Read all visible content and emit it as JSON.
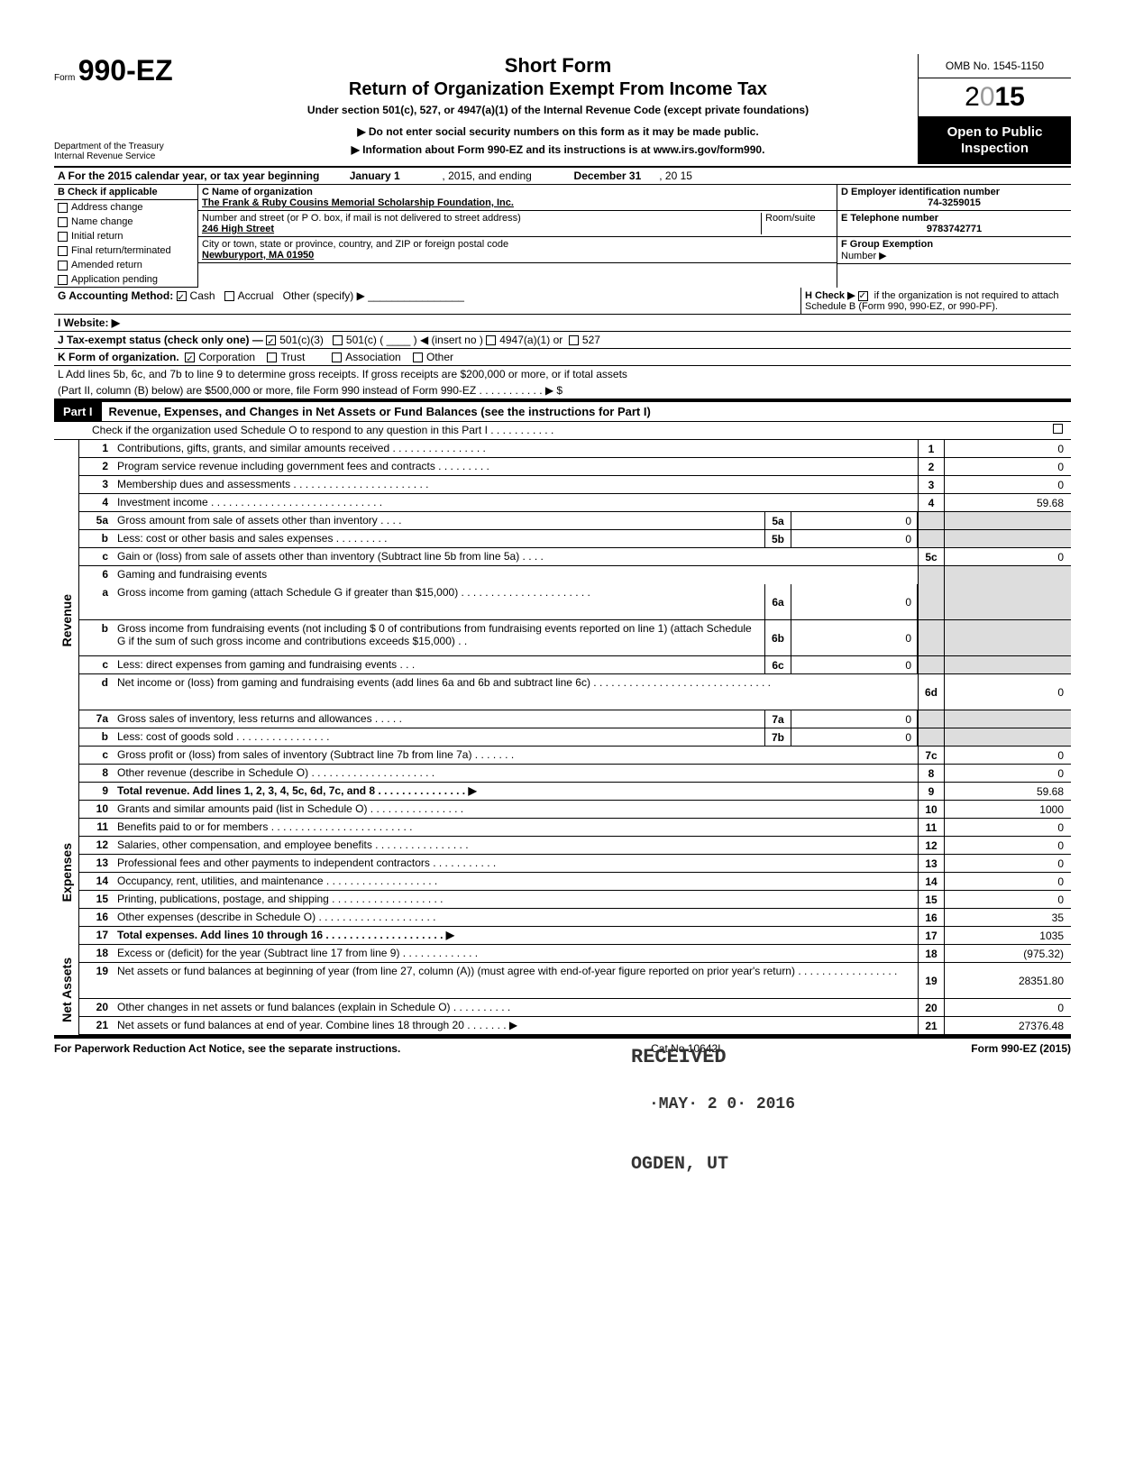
{
  "header": {
    "form_prefix": "Form",
    "form_number": "990-EZ",
    "title_line1": "Short Form",
    "title_line2": "Return of Organization Exempt From Income Tax",
    "subtitle": "Under section 501(c), 527, or 4947(a)(1) of the Internal Revenue Code (except private foundations)",
    "notice1": "▶ Do not enter social security numbers on this form as it may be made public.",
    "notice2": "▶ Information about Form 990-EZ and its instructions is at www.irs.gov/form990.",
    "omb": "OMB No. 1545-1150",
    "year_prefix": "2",
    "year_zero": "0",
    "year_suffix": "15",
    "open_public": "Open to Public Inspection",
    "dept1": "Department of the Treasury",
    "dept2": "Internal Revenue Service"
  },
  "section_a": {
    "label": "A For the 2015 calendar year, or tax year beginning",
    "begin": "January 1",
    "mid": ", 2015, and ending",
    "end": "December 31",
    "end_year": ", 20 15"
  },
  "section_b": {
    "label": "B Check if applicable",
    "items": [
      "Address change",
      "Name change",
      "Initial return",
      "Final return/terminated",
      "Amended return",
      "Application pending"
    ]
  },
  "section_c": {
    "label": "C Name of organization",
    "org_name": "The Frank & Ruby Cousins Memorial Scholarship Foundation, Inc.",
    "addr_label": "Number and street (or P O. box, if mail is not delivered to street address)",
    "room_label": "Room/suite",
    "street": "246 High Street",
    "city_label": "City or town, state or province, country, and ZIP or foreign postal code",
    "city": "Newburyport, MA  01950"
  },
  "section_d": {
    "label": "D Employer identification number",
    "value": "74-3259015"
  },
  "section_e": {
    "label": "E Telephone number",
    "value": "9783742771"
  },
  "section_f": {
    "label": "F Group Exemption",
    "label2": "Number ▶"
  },
  "section_g": {
    "label": "G Accounting Method:",
    "cash": "Cash",
    "accrual": "Accrual",
    "other": "Other (specify) ▶"
  },
  "section_h": {
    "label": "H Check ▶",
    "text": "if the organization is not required to attach Schedule B (Form 990, 990-EZ, or 990-PF)."
  },
  "section_i": {
    "label": "I  Website: ▶"
  },
  "section_j": {
    "label": "J Tax-exempt status (check only one) —",
    "o1": "501(c)(3)",
    "o2": "501(c) (",
    "o3": ") ◀ (insert no )",
    "o4": "4947(a)(1) or",
    "o5": "527"
  },
  "section_k": {
    "label": "K Form of organization.",
    "o1": "Corporation",
    "o2": "Trust",
    "o3": "Association",
    "o4": "Other"
  },
  "section_l": {
    "line1": "L Add lines 5b, 6c, and 7b to line 9 to determine gross receipts. If gross receipts are $200,000 or more, or if total assets",
    "line2": "(Part II, column (B) below) are $500,000 or more, file Form 990 instead of Form 990-EZ .  .  .  .  .  .  .  .  .  .  .  ▶  $"
  },
  "part1": {
    "label": "Part I",
    "title": "Revenue, Expenses, and Changes in Net Assets or Fund Balances (see the instructions for Part I)",
    "check_line": "Check if the organization used Schedule O to respond to any question in this Part I  .  .  .  .  .  .  .  .  .  .  ."
  },
  "sides": {
    "revenue": "Revenue",
    "expenses": "Expenses",
    "net": "Net Assets"
  },
  "lines": [
    {
      "n": "1",
      "d": "Contributions, gifts, grants, and similar amounts received .  .  .  .  .  .  .  .  .  .  .  .  .  .  .  .",
      "b": "1",
      "v": "0"
    },
    {
      "n": "2",
      "d": "Program service revenue including government fees and contracts  .  .  .  .  .  .  .  .  .",
      "b": "2",
      "v": "0"
    },
    {
      "n": "3",
      "d": "Membership dues and assessments .  .  .  .  .  .  .  .  .  .  .  .  .  .  .  .  .  .  .  .  .  .  .",
      "b": "3",
      "v": "0"
    },
    {
      "n": "4",
      "d": "Investment income  .  .  .  .  .  .  .  .  .  .  .  .  .  .  .  .  .  .  .  .  .  .  .  .  .  .  .  .  .",
      "b": "4",
      "v": "59.68"
    },
    {
      "n": "5a",
      "d": "Gross amount from sale of assets other than inventory  .  .  .  .",
      "mn": "5a",
      "mv": "0",
      "gray": true
    },
    {
      "n": "b",
      "d": "Less: cost or other basis and sales expenses .  .  .  .  .  .  .  .  .",
      "mn": "5b",
      "mv": "0",
      "gray": true
    },
    {
      "n": "c",
      "d": "Gain or (loss) from sale of assets other than inventory (Subtract line 5b from line 5a) .  .  .  .",
      "b": "5c",
      "v": "0"
    },
    {
      "n": "6",
      "d": "Gaming and fundraising events",
      "gray": true,
      "noborder": true
    },
    {
      "n": "a",
      "d": "Gross income from gaming (attach Schedule G if greater than $15,000) .  .  .  .  .  .  .  .  .  .  .  .  .  .  .  .  .  .  .  .  .  .",
      "mn": "6a",
      "mv": "0",
      "gray": true,
      "tall": true
    },
    {
      "n": "b",
      "d": "Gross income from fundraising events (not including  $                    0 of contributions from fundraising events reported on line 1) (attach Schedule G if the sum of such gross income and contributions exceeds $15,000) .  .",
      "mn": "6b",
      "mv": "0",
      "gray": true,
      "tall": true
    },
    {
      "n": "c",
      "d": "Less: direct expenses from gaming and fundraising events  .  .  .",
      "mn": "6c",
      "mv": "0",
      "gray": true
    },
    {
      "n": "d",
      "d": "Net income or (loss) from gaming and fundraising events (add lines 6a and 6b and subtract line 6c)  .  .  .  .  .  .  .  .  .  .  .  .  .  .  .  .  .  .  .  .  .  .  .  .  .  .  .  .  .  .",
      "b": "6d",
      "v": "0",
      "tall": true
    },
    {
      "n": "7a",
      "d": "Gross sales of inventory, less returns and allowances  .  .  .  .  .",
      "mn": "7a",
      "mv": "0",
      "gray": true
    },
    {
      "n": "b",
      "d": "Less: cost of goods sold  .  .  .  .  .  .  .  .  .  .  .  .  .  .  .  .",
      "mn": "7b",
      "mv": "0",
      "gray": true
    },
    {
      "n": "c",
      "d": "Gross profit or (loss) from sales of inventory (Subtract line 7b from line 7a)  .  .  .  .  .  .  .",
      "b": "7c",
      "v": "0"
    },
    {
      "n": "8",
      "d": "Other revenue (describe in Schedule O) .  .  .  .  .  .  .  .  .  .  .  .  .  .  .  .  .  .  .  .  .",
      "b": "8",
      "v": "0"
    },
    {
      "n": "9",
      "d": "Total revenue. Add lines 1, 2, 3, 4, 5c, 6d, 7c, and 8  .  .  .  .  .  .  .  .  .  .  .  .  .  .  .  ▶",
      "b": "9",
      "v": "59.68",
      "bold": true
    }
  ],
  "exp_lines": [
    {
      "n": "10",
      "d": "Grants and similar amounts paid (list in Schedule O)  .  .  .  .  .  .  .  .  .  .  .  .  .  .  .  .",
      "b": "10",
      "v": "1000"
    },
    {
      "n": "11",
      "d": "Benefits paid to or for members  .  .  .  .  .  .  .  .  .  .  .  .  .  .  .  .  .  .  .  .  .  .  .  .",
      "b": "11",
      "v": "0"
    },
    {
      "n": "12",
      "d": "Salaries, other compensation, and employee benefits .  .  .  .  .  .  .  .  .  .  .  .  .  .  .  .",
      "b": "12",
      "v": "0"
    },
    {
      "n": "13",
      "d": "Professional fees and other payments to independent contractors  .  .  .  .  .  .  .  .  .  .  .",
      "b": "13",
      "v": "0"
    },
    {
      "n": "14",
      "d": "Occupancy, rent, utilities, and maintenance  .  .  .  .  .  .  .  .  .  .  .  .  .  .  .  .  .  .  .",
      "b": "14",
      "v": "0"
    },
    {
      "n": "15",
      "d": "Printing, publications, postage, and shipping .  .  .  .  .  .  .  .  .  .  .  .  .  .  .  .  .  .  .",
      "b": "15",
      "v": "0"
    },
    {
      "n": "16",
      "d": "Other expenses (describe in Schedule O)  .  .  .  .  .  .  .  .  .  .  .  .  .  .  .  .  .  .  .  .",
      "b": "16",
      "v": "35"
    },
    {
      "n": "17",
      "d": "Total expenses. Add lines 10 through 16 .  .  .  .  .  .  .  .  .  .  .  .  .  .  .  .  .  .  .  . ▶",
      "b": "17",
      "v": "1035",
      "bold": true
    }
  ],
  "net_lines": [
    {
      "n": "18",
      "d": "Excess or (deficit) for the year (Subtract line 17 from line 9)  .  .  .  .  .  .  .  .  .  .  .  .  .",
      "b": "18",
      "v": "(975.32)"
    },
    {
      "n": "19",
      "d": "Net assets or fund balances at beginning of year (from line 27, column (A)) (must agree with end-of-year figure reported on prior year's return)  .  .  .  .  .  .  .  .  .  .  .  .  .  .  .  .  .",
      "b": "19",
      "v": "28351.80",
      "tall": true
    },
    {
      "n": "20",
      "d": "Other changes in net assets or fund balances (explain in Schedule O) .  .  .  .  .  .  .  .  .  .",
      "b": "20",
      "v": "0"
    },
    {
      "n": "21",
      "d": "Net assets or fund balances at end of year. Combine lines 18 through 20  .  .  .  .  .  .  . ▶",
      "b": "21",
      "v": "27376.48"
    }
  ],
  "footer": {
    "left": "For Paperwork Reduction Act Notice, see the separate instructions.",
    "mid": "Cat No 10642I",
    "right": "Form 990-EZ (2015)"
  },
  "stamps": {
    "received": "RECEIVED",
    "date": "·MAY· 2 0· 2016",
    "ogden": "OGDEN, UT"
  },
  "colors": {
    "black": "#000000",
    "white": "#ffffff",
    "gray_fill": "#dddddd",
    "year_gray": "#999999"
  }
}
